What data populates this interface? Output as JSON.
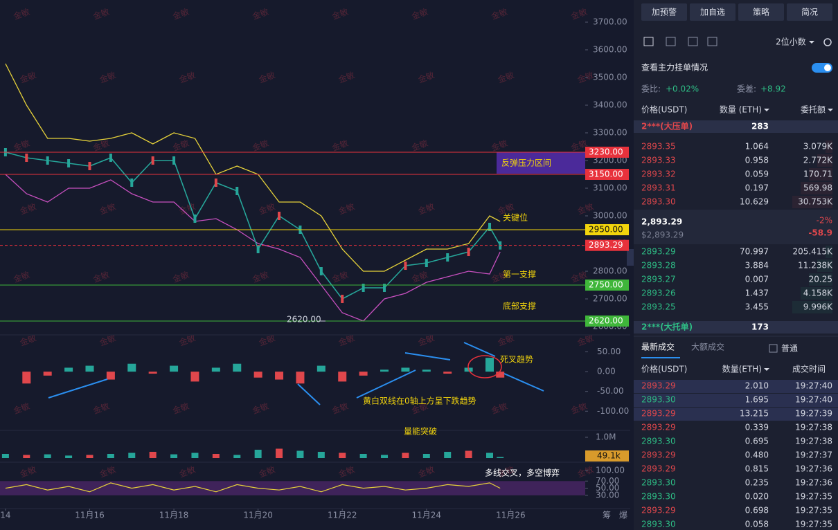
{
  "watermark": "金敏",
  "price_chart": {
    "x": [
      14,
      14.5,
      15,
      15.5,
      16,
      16.5,
      17,
      17.5,
      18,
      18.5,
      19,
      19.5,
      20,
      20.5,
      21,
      21.5,
      22,
      22.5,
      23,
      23.5,
      24,
      24.5,
      25,
      25.5,
      25.75
    ],
    "xlim": [
      13.87,
      27.77
    ],
    "xticks": [
      14,
      {
        "value": 16,
        "label": "11月16"
      },
      {
        "value": 18,
        "label": "11月18"
      },
      {
        "value": 20,
        "label": "11月20"
      },
      {
        "value": 22,
        "label": "11月22"
      },
      {
        "value": 24,
        "label": "11月24"
      },
      {
        "value": 26,
        "label": "11月26"
      }
    ],
    "close": {
      "color": "#26a69a",
      "values": [
        3230,
        3210,
        3200,
        3190,
        3180,
        3210,
        3120,
        3200,
        3200,
        2990,
        3120,
        3090,
        2880,
        3000,
        2950,
        2800,
        2700,
        2740,
        2740,
        2820,
        2830,
        2850,
        2870,
        2960,
        2893.29
      ]
    },
    "upper": {
      "color": "#e6d23a",
      "values": [
        3550,
        3400,
        3280,
        3280,
        3270,
        3280,
        3300,
        3260,
        3300,
        3280,
        3150,
        3180,
        3150,
        3050,
        3050,
        3000,
        2880,
        2800,
        2800,
        2840,
        2880,
        2880,
        2900,
        3000,
        2980
      ]
    },
    "lower": {
      "color": "#c850c0",
      "values": [
        3150,
        3080,
        3050,
        3100,
        3100,
        3130,
        3080,
        3050,
        3050,
        2980,
        2990,
        2950,
        2900,
        2880,
        2850,
        2750,
        2650,
        2620,
        2700,
        2720,
        2760,
        2780,
        2800,
        2790,
        2870
      ]
    },
    "ylim": [
      2580,
      3740
    ],
    "yticks": [
      {
        "value": 2600,
        "label": "2600.00"
      },
      {
        "value": 2700,
        "label": "2700.00"
      },
      {
        "value": 2800,
        "label": "2800.00"
      },
      {
        "value": 2900,
        "label": "2900.00"
      },
      {
        "value": 3000,
        "label": "3000.00"
      },
      {
        "value": 3100,
        "label": "3100.00"
      },
      {
        "value": 3200,
        "label": "3200.00"
      },
      {
        "value": 3300,
        "label": "3300.00"
      },
      {
        "value": 3400,
        "label": "3400.00"
      },
      {
        "value": 3500,
        "label": "3500.00"
      },
      {
        "value": 3600,
        "label": "3600.00"
      },
      {
        "value": 3700,
        "label": "3700.00"
      }
    ],
    "levels": [
      {
        "value": 3230,
        "label": "3230.00",
        "color": "#e8323c"
      },
      {
        "value": 3150,
        "label": "3150.00",
        "color": "#e8323c"
      },
      {
        "value": 2950,
        "label": "2950.00",
        "color": "#f2d40c"
      },
      {
        "value": 2893.29,
        "label": "2893.29",
        "color": "#e8323c",
        "dashed": true
      },
      {
        "value": 2750,
        "label": "2750.00",
        "color": "#3fb63a"
      },
      {
        "value": 2620,
        "label": "2620.00",
        "color": "#3fb63a"
      }
    ],
    "low_label": {
      "value": 2620,
      "label": "2620.00"
    },
    "annotations": {
      "resistance": "反弹压力区间",
      "key": "关键位",
      "support1": "第一支撑",
      "support_bottom": "底部支撑"
    }
  },
  "macd": {
    "ylim": [
      -145,
      100
    ],
    "yticks": [
      {
        "value": 50,
        "label": "50.00"
      },
      {
        "value": 0,
        "label": "0.00"
      },
      {
        "value": -50,
        "label": "-50.00"
      },
      {
        "value": -100,
        "label": "-100.00"
      }
    ],
    "hist": [
      0,
      -30,
      -10,
      10,
      15,
      -20,
      20,
      -5,
      15,
      -25,
      10,
      20,
      -15,
      -20,
      -30,
      15,
      -25,
      -10,
      5,
      10,
      5,
      -5,
      10,
      35,
      -15
    ],
    "annotations": {
      "cross": "死叉趋势",
      "trend": "黄白双线在0轴上方呈下跌趋势"
    }
  },
  "volume": {
    "ylim": [
      0,
      1200000
    ],
    "yticks": [
      {
        "value": 1000000,
        "label": "1.0M"
      }
    ],
    "values": [
      200000,
      150000,
      180000,
      120000,
      150000,
      200000,
      250000,
      300000,
      180000,
      250000,
      200000,
      150000,
      400000,
      450000,
      350000,
      300000,
      250000,
      200000,
      150000,
      250000,
      200000,
      300000,
      350000,
      250000,
      49100
    ],
    "value_labels": [
      null,
      null,
      null,
      null,
      null,
      null,
      null,
      null,
      null,
      null,
      null,
      null,
      null,
      null,
      null,
      null,
      null,
      null,
      null,
      null,
      null,
      null,
      null,
      null,
      "49.1k"
    ],
    "annotation": "量能突破"
  },
  "rsi": {
    "ylim": [
      -7,
      119
    ],
    "yticks": [
      {
        "value": 100,
        "label": "100.00"
      },
      {
        "value": 70,
        "label": "70.00"
      },
      {
        "value": 50,
        "label": "50.00"
      },
      {
        "value": 30,
        "label": "30.00"
      }
    ],
    "values": [
      50,
      60,
      45,
      55,
      40,
      65,
      50,
      60,
      45,
      55,
      40,
      60,
      50,
      45,
      55,
      40,
      60,
      50,
      55,
      45,
      50,
      60,
      55,
      65,
      50
    ],
    "annotation": "多线交叉，多空博弈"
  },
  "chart_corner": [
    "筹",
    "爆"
  ],
  "panel": {
    "buttons": [
      "加预警",
      "加自选",
      "策略",
      "简况"
    ],
    "decimals": "2位小数",
    "depth_link": "查看主力挂单情况",
    "ratio_label": "委比:",
    "ratio": "+0.02%",
    "diff_label": "委差:",
    "diff": "+8.92",
    "book_header": [
      "价格(USDT)",
      "数量 (ETH)",
      "委托额"
    ],
    "ask_banner": {
      "label": "2***(大压单)",
      "qty": "283"
    },
    "asks": [
      [
        "2893.35",
        "1.064",
        "3.079K"
      ],
      [
        "2893.33",
        "0.958",
        "2.772K"
      ],
      [
        "2893.32",
        "0.059",
        "170.71"
      ],
      [
        "2893.31",
        "0.197",
        "569.98"
      ],
      [
        "2893.30",
        "10.629",
        "30.753K"
      ]
    ],
    "last": "2,893.29",
    "last_usd": "$2,893.29",
    "change_pct": "-2%",
    "change": "-58.9",
    "bids": [
      [
        "2893.29",
        "70.997",
        "205.415K"
      ],
      [
        "2893.28",
        "3.884",
        "11.238K"
      ],
      [
        "2893.27",
        "0.007",
        "20.25"
      ],
      [
        "2893.26",
        "1.437",
        "4.158K"
      ],
      [
        "2893.25",
        "3.455",
        "9.996K"
      ]
    ],
    "bid_banner": {
      "label": "2***(大托单)",
      "qty": "173"
    },
    "tabs": [
      "最新成交",
      "大额成交"
    ],
    "normal": "普通",
    "trade_header": [
      "价格(USDT)",
      "数量(ETH)",
      "成交时间"
    ],
    "trades": [
      [
        "2893.29",
        "2.010",
        "19:27:40"
      ],
      [
        "2893.30",
        "1.695",
        "19:27:40"
      ],
      [
        "2893.29",
        "13.215",
        "19:27:39"
      ],
      [
        "2893.29",
        "0.339",
        "19:27:38"
      ],
      [
        "2893.30",
        "0.695",
        "19:27:38"
      ],
      [
        "2893.29",
        "0.480",
        "19:27:37"
      ],
      [
        "2893.29",
        "0.815",
        "19:27:36"
      ],
      [
        "2893.30",
        "0.235",
        "19:27:36"
      ],
      [
        "2893.30",
        "0.020",
        "19:27:35"
      ],
      [
        "2893.29",
        "0.698",
        "19:27:35"
      ],
      [
        "2893.30",
        "0.058",
        "19:27:35"
      ]
    ],
    "trade_colors": [
      "#e0474c",
      "#2ebd85",
      "#e0474c",
      "#e0474c",
      "#2ebd85",
      "#e0474c",
      "#e0474c",
      "#2ebd85",
      "#2ebd85",
      "#e0474c",
      "#2ebd85"
    ]
  }
}
